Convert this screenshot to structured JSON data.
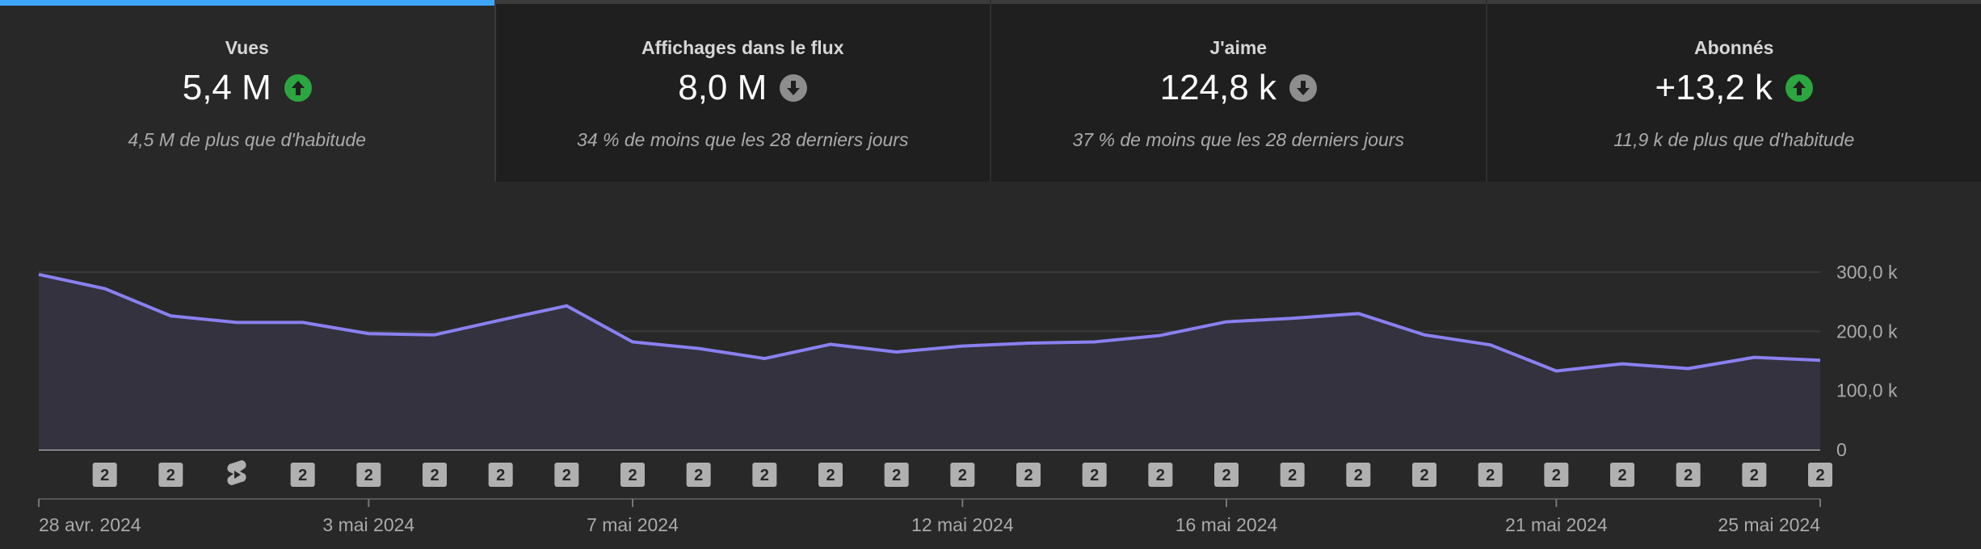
{
  "cards": [
    {
      "label": "Vues",
      "value": "5,4 M",
      "trend": "up",
      "desc": "4,5 M de plus que d'habitude"
    },
    {
      "label": "Affichages dans le flux",
      "value": "8,0 M",
      "trend": "down",
      "desc": "34 % de moins que les 28 derniers jours"
    },
    {
      "label": "J'aime",
      "value": "124,8 k",
      "trend": "down",
      "desc": "37 % de moins que les 28 derniers jours"
    },
    {
      "label": "Abonnés",
      "value": "+13,2 k",
      "trend": "up",
      "desc": "11,9 k de plus que d'habitude"
    }
  ],
  "chart_data": {
    "type": "area",
    "series": [
      {
        "values": [
          296,
          272,
          226,
          215,
          215,
          196,
          194,
          219,
          243,
          182,
          171,
          154,
          178,
          165,
          175,
          180,
          182,
          193,
          216,
          222,
          230,
          194,
          177,
          133,
          145,
          137,
          156,
          151
        ]
      }
    ],
    "ylim": [
      0,
      300
    ],
    "y_ticks": [
      "300,0 k",
      "200,0 k",
      "100,0 k",
      "0"
    ],
    "x_tick_labels": [
      {
        "index": 0,
        "label": "28 avr. 2024"
      },
      {
        "index": 5,
        "label": "3 mai 2024"
      },
      {
        "index": 9,
        "label": "7 mai 2024"
      },
      {
        "index": 14,
        "label": "12 mai 2024"
      },
      {
        "index": 18,
        "label": "16 mai 2024"
      },
      {
        "index": 23,
        "label": "21 mai 2024"
      },
      {
        "index": 27,
        "label": "25 mai 2024"
      }
    ],
    "markers": [
      "2",
      "2",
      "shorts",
      "2",
      "2",
      "2",
      "2",
      "2",
      "2",
      "2",
      "2",
      "2",
      "2",
      "2",
      "2",
      "2",
      "2",
      "2",
      "2",
      "2",
      "2",
      "2",
      "2",
      "2",
      "2",
      "2",
      "2"
    ],
    "colors": {
      "line": "#8a80f0",
      "fill": "#34333f",
      "grid": "#3a3a3a",
      "axis": "#8a8a8a",
      "marker": "#b0b0b0"
    }
  }
}
